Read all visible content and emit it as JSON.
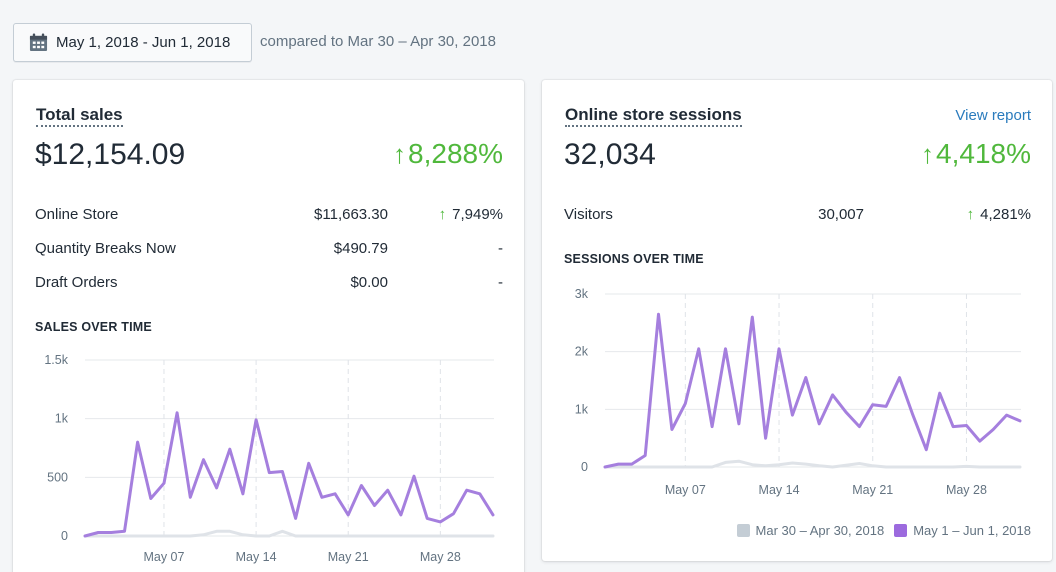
{
  "date_picker": {
    "label": "May 1, 2018 - Jun 1, 2018",
    "icon": "calendar-icon"
  },
  "compare_text": "compared to Mar 30 – Apr 30, 2018",
  "colors": {
    "current": "#a57fde",
    "previous": "#dfe3e8",
    "positive": "#50b83c",
    "link": "#2a7bbd"
  },
  "total_sales": {
    "title": "Total sales",
    "value": "$12,154.09",
    "pct_arrow": "↑",
    "pct": "8,288%",
    "rows": [
      {
        "name": "Online Store",
        "value": "$11,663.30",
        "arrow": "↑",
        "pct": "7,949%"
      },
      {
        "name": "Quantity Breaks Now",
        "value": "$490.79",
        "arrow": "",
        "pct": "-"
      },
      {
        "name": "Draft Orders",
        "value": "$0.00",
        "arrow": "",
        "pct": "-"
      }
    ],
    "chart_title": "SALES OVER TIME"
  },
  "sessions": {
    "title": "Online store sessions",
    "view_report": "View report",
    "value": "32,034",
    "pct_arrow": "↑",
    "pct": "4,418%",
    "rows": [
      {
        "name": "Visitors",
        "value": "30,007",
        "arrow": "↑",
        "pct": "4,281%"
      }
    ],
    "chart_title": "SESSIONS OVER TIME"
  },
  "legend": {
    "previous": "Mar 30 – Apr 30, 2018",
    "current": "May 1 – Jun 1, 2018"
  },
  "chart_data": [
    {
      "type": "line",
      "title": "SALES OVER TIME",
      "x_tick_labels": [
        "May 07",
        "May 14",
        "May 21",
        "May 28"
      ],
      "x_tick_index": [
        6,
        13,
        20,
        27
      ],
      "y_tick_labels": [
        "0",
        "500",
        "1k",
        "1.5k"
      ],
      "ylim": [
        0,
        1500
      ],
      "grid": true,
      "series": [
        {
          "name": "May 1 – Jun 1, 2018",
          "color": "#a57fde",
          "values": [
            0,
            30,
            30,
            40,
            800,
            320,
            450,
            1050,
            330,
            650,
            410,
            740,
            360,
            990,
            540,
            550,
            150,
            620,
            330,
            360,
            180,
            430,
            260,
            390,
            180,
            510,
            150,
            120,
            190,
            390,
            360,
            180
          ]
        },
        {
          "name": "Mar 30 – Apr 30, 2018",
          "color": "#dfe3e8",
          "values": [
            0,
            0,
            0,
            0,
            0,
            0,
            0,
            0,
            0,
            10,
            40,
            40,
            10,
            0,
            0,
            40,
            0,
            0,
            0,
            0,
            0,
            0,
            0,
            0,
            0,
            0,
            0,
            0,
            0,
            0,
            0,
            0
          ]
        }
      ]
    },
    {
      "type": "line",
      "title": "SESSIONS OVER TIME",
      "x_tick_labels": [
        "May 07",
        "May 14",
        "May 21",
        "May 28"
      ],
      "x_tick_index": [
        6,
        13,
        20,
        27
      ],
      "y_tick_labels": [
        "0",
        "1k",
        "2k",
        "3k"
      ],
      "ylim": [
        0,
        3000
      ],
      "grid": true,
      "series": [
        {
          "name": "May 1 – Jun 1, 2018",
          "color": "#a57fde",
          "values": [
            0,
            50,
            50,
            200,
            2650,
            650,
            1100,
            2050,
            700,
            2050,
            750,
            2600,
            500,
            2050,
            900,
            1550,
            750,
            1250,
            950,
            700,
            1080,
            1050,
            1550,
            900,
            300,
            1280,
            700,
            720,
            450,
            650,
            900,
            800
          ]
        },
        {
          "name": "Mar 30 – Apr 30, 2018",
          "color": "#dfe3e8",
          "values": [
            0,
            0,
            0,
            0,
            0,
            0,
            0,
            0,
            0,
            80,
            100,
            40,
            20,
            40,
            70,
            50,
            20,
            0,
            30,
            60,
            20,
            0,
            0,
            0,
            0,
            0,
            0,
            10,
            0,
            0,
            0,
            0
          ]
        }
      ]
    }
  ]
}
